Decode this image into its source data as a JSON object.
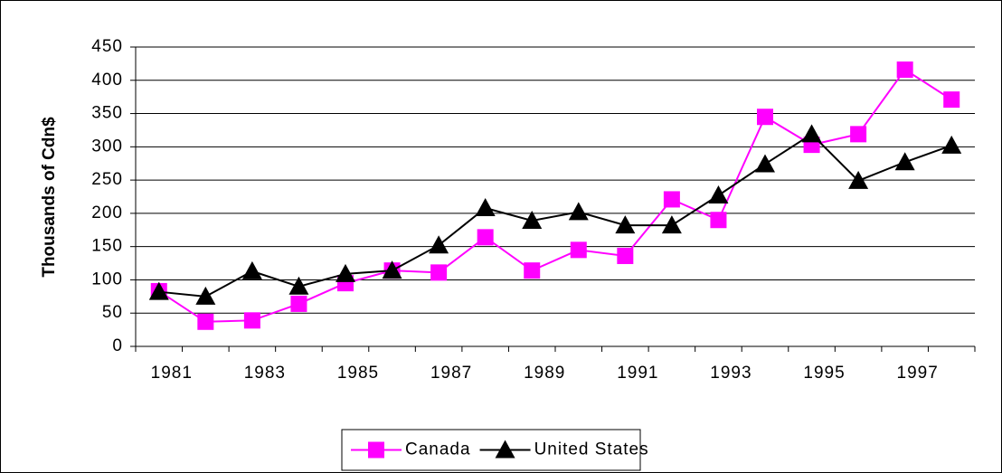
{
  "chart_data": {
    "type": "line",
    "y_label": "Thousands of Cdn$",
    "categories": [
      "1981",
      null,
      "1983",
      null,
      "1985",
      null,
      "1987",
      null,
      "1989",
      null,
      "1991",
      null,
      "1993",
      null,
      "1995",
      null,
      "1997",
      null
    ],
    "series": [
      {
        "name": "Canada",
        "color": "#ff00ff",
        "marker": "square",
        "values": [
          83,
          37,
          39,
          64,
          95,
          114,
          111,
          164,
          114,
          145,
          136,
          221,
          190,
          345,
          303,
          319,
          416,
          371
        ]
      },
      {
        "name": "United States",
        "color": "#000000",
        "marker": "triangle",
        "values": [
          82,
          75,
          113,
          90,
          109,
          114,
          152,
          208,
          189,
          202,
          182,
          182,
          227,
          274,
          319,
          249,
          277,
          302
        ]
      }
    ],
    "ylim": [
      0,
      450
    ],
    "yticks": [
      0,
      50,
      100,
      150,
      200,
      250,
      300,
      350,
      400,
      450
    ],
    "grid": true,
    "legend": "bottom"
  }
}
